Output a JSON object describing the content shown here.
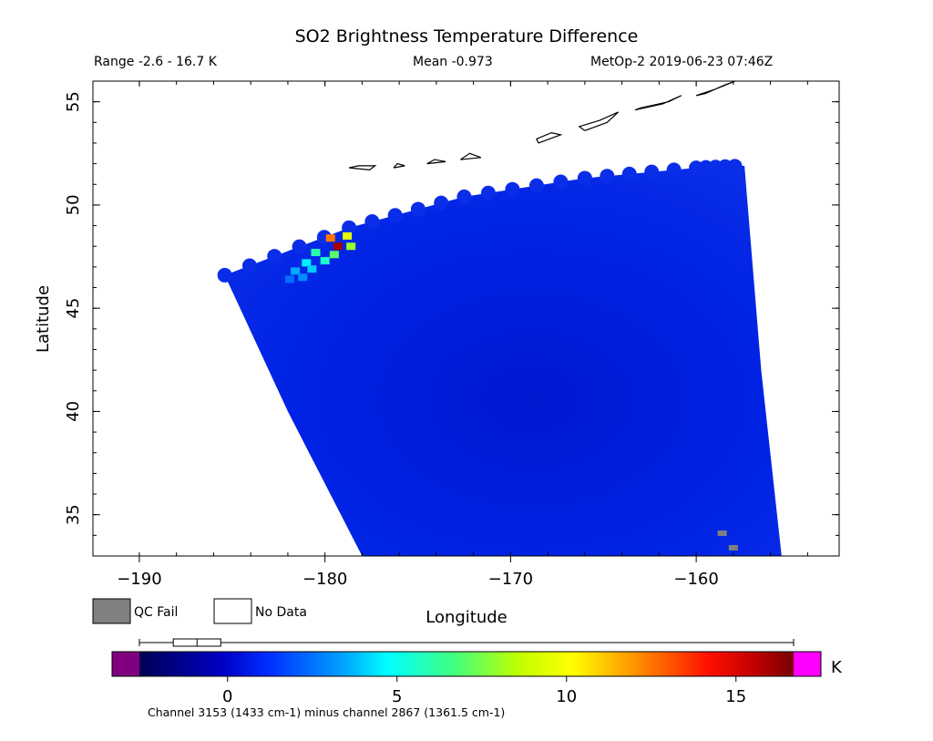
{
  "chart_data": {
    "type": "heatmap",
    "title": "SO2 Brightness Temperature Difference",
    "range_text": "Range -2.6 - 16.7 K",
    "mean_text": "Mean -0.973",
    "instrument_text": "MetOp-2 2019-06-23 07:46Z",
    "xlabel": "Longitude",
    "ylabel": "Latitude",
    "xlim": [
      -192.5,
      -152.3
    ],
    "ylim": [
      33,
      56
    ],
    "x_ticks": [
      -190,
      -180,
      -170,
      -160
    ],
    "x_tick_labels": [
      "−190",
      "−180",
      "−170",
      "−160"
    ],
    "y_ticks": [
      35,
      40,
      45,
      50,
      55
    ],
    "y_tick_labels": [
      "35",
      "40",
      "45",
      "50",
      "55"
    ],
    "legend": [
      {
        "label": "QC Fail",
        "color": "#808080"
      },
      {
        "label": "No Data",
        "color": "#ffffff"
      }
    ],
    "colorbar": {
      "range": [
        -2.6,
        16.7
      ],
      "ticks": [
        0,
        5,
        10,
        15
      ],
      "tick_labels": [
        "0",
        "5",
        "10",
        "15"
      ],
      "unit": "K",
      "under_color": "#800080",
      "over_color": "#ff00ff",
      "boxplot": {
        "min": -2.6,
        "q1": -1.6,
        "median": -0.9,
        "q3": -0.2,
        "max": 16.7
      },
      "caption": "Channel 3153 (1433 cm-1) minus channel 2867 (1361.5 cm-1)"
    },
    "swath": {
      "top_edge": [
        [
          -185.4,
          46.6
        ],
        [
          -178.7,
          48.9
        ],
        [
          -172.5,
          50.4
        ],
        [
          -166.0,
          51.3
        ],
        [
          -160.0,
          51.8
        ],
        [
          -157.4,
          51.9
        ]
      ],
      "bottom_edge": [
        [
          -178.0,
          33.0
        ],
        [
          -155.4,
          33.0
        ]
      ],
      "left_edge": [
        [
          -185.4,
          46.6
        ],
        [
          -182.0,
          40.0
        ],
        [
          -178.0,
          33.0
        ]
      ],
      "right_edge": [
        [
          -157.4,
          51.9
        ],
        [
          -156.5,
          42.0
        ],
        [
          -155.4,
          33.0
        ]
      ],
      "background_value": -1.0
    },
    "so2_plume_pixels": [
      {
        "lon": -179.7,
        "lat": 48.4,
        "value": 12.5
      },
      {
        "lon": -178.8,
        "lat": 48.5,
        "value": 9.5
      },
      {
        "lon": -179.3,
        "lat": 48.0,
        "value": 16.0
      },
      {
        "lon": -178.6,
        "lat": 48.0,
        "value": 8.0
      },
      {
        "lon": -180.5,
        "lat": 47.7,
        "value": 6.0
      },
      {
        "lon": -179.5,
        "lat": 47.6,
        "value": 7.0
      },
      {
        "lon": -181.0,
        "lat": 47.2,
        "value": 4.5
      },
      {
        "lon": -180.0,
        "lat": 47.3,
        "value": 5.5
      },
      {
        "lon": -181.6,
        "lat": 46.8,
        "value": 3.5
      },
      {
        "lon": -180.7,
        "lat": 46.9,
        "value": 4.0
      },
      {
        "lon": -181.9,
        "lat": 46.4,
        "value": 2.5
      },
      {
        "lon": -181.2,
        "lat": 46.5,
        "value": 3.0
      }
    ],
    "qc_fail_pixels": [
      {
        "lon": -158.6,
        "lat": 34.1
      },
      {
        "lon": -158.0,
        "lat": 33.4
      }
    ],
    "coastlines": [
      [
        [
          -160.0,
          55.3
        ],
        [
          -159.0,
          55.6
        ],
        [
          -157.9,
          56.0
        ],
        [
          -158.5,
          55.8
        ],
        [
          -159.5,
          55.4
        ],
        [
          -160.0,
          55.3
        ]
      ],
      [
        [
          -163.3,
          54.6
        ],
        [
          -161.8,
          54.9
        ],
        [
          -160.8,
          55.3
        ],
        [
          -161.5,
          55.0
        ],
        [
          -163.0,
          54.7
        ],
        [
          -163.3,
          54.6
        ]
      ],
      [
        [
          -166.0,
          53.6
        ],
        [
          -164.8,
          54.0
        ],
        [
          -164.2,
          54.5
        ],
        [
          -165.2,
          54.1
        ],
        [
          -166.3,
          53.8
        ],
        [
          -166.0,
          53.6
        ]
      ],
      [
        [
          -168.5,
          53.0
        ],
        [
          -167.3,
          53.4
        ],
        [
          -167.8,
          53.5
        ],
        [
          -168.6,
          53.2
        ],
        [
          -168.5,
          53.0
        ]
      ],
      [
        [
          -172.7,
          52.2
        ],
        [
          -171.6,
          52.3
        ],
        [
          -172.2,
          52.5
        ],
        [
          -172.7,
          52.2
        ]
      ],
      [
        [
          -174.5,
          52.0
        ],
        [
          -173.5,
          52.1
        ],
        [
          -174.1,
          52.2
        ],
        [
          -174.5,
          52.0
        ]
      ],
      [
        [
          -178.7,
          51.8
        ],
        [
          -177.6,
          51.7
        ],
        [
          -177.3,
          51.9
        ],
        [
          -178.2,
          51.9
        ],
        [
          -178.7,
          51.8
        ]
      ],
      [
        [
          -176.3,
          51.8
        ],
        [
          -175.7,
          51.9
        ],
        [
          -176.1,
          52.0
        ],
        [
          -176.3,
          51.8
        ]
      ]
    ]
  }
}
